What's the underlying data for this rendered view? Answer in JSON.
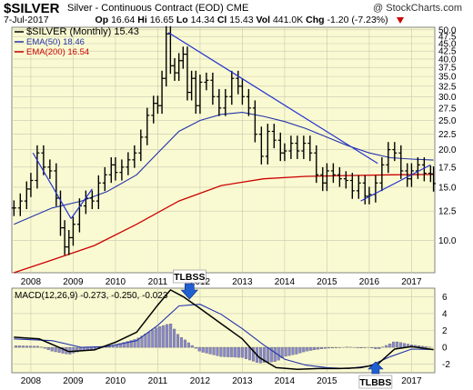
{
  "header": {
    "symbol": "$SILVER",
    "description": "Silver - Continuous Contract (EOD)",
    "exchange": "CME",
    "brand": "@ StockCharts.com",
    "date": "7-Jul-2017",
    "open_label": "Op",
    "open": "16.64",
    "high_label": "Hi",
    "high": "16.65",
    "low_label": "Lo",
    "low": "14.34",
    "close_label": "Cl",
    "close": "15.43",
    "vol_label": "Vol",
    "vol": "441.0K",
    "chg_label": "Chg",
    "chg": "-1.20 (-7.23%)"
  },
  "chart_data": [
    {
      "type": "line",
      "panel": "price",
      "yscale": "log",
      "ylim": [
        7.8,
        51
      ],
      "xlim": [
        2007.55,
        2017.55
      ],
      "yticks": [
        "50.0",
        "47.5",
        "45.0",
        "42.5",
        "40.0",
        "37.5",
        "35.0",
        "32.5",
        "30.0",
        "27.5",
        "25.0",
        "22.5",
        "20.0",
        "17.5",
        "15.0",
        "12.5",
        "10.0"
      ],
      "xticks": [
        "2008",
        "2009",
        "2010",
        "2011",
        "2012",
        "2013",
        "2014",
        "2015",
        "2016",
        "2017"
      ],
      "legend": [
        {
          "text": "$SILVER (Monthly) 15.43",
          "color": "#000000"
        },
        {
          "text": "EMA(50) 18.46",
          "color": "#2233aa"
        },
        {
          "text": "EMA(200) 16.54",
          "color": "#cc0000"
        }
      ],
      "colors": {
        "price": "#000000",
        "ema50": "#2233aa",
        "ema200": "#cc0000",
        "trendline": "#2233cc",
        "background": "#fafad2"
      },
      "series": [
        {
          "name": "$SILVER (Monthly) 15.43",
          "x": [
            2007.6,
            2007.75,
            2007.9,
            2008.0,
            2008.15,
            2008.3,
            2008.45,
            2008.6,
            2008.7,
            2008.8,
            2008.9,
            2009.0,
            2009.15,
            2009.3,
            2009.45,
            2009.6,
            2009.75,
            2009.9,
            2010.0,
            2010.15,
            2010.3,
            2010.45,
            2010.6,
            2010.75,
            2010.9,
            2011.0,
            2011.1,
            2011.2,
            2011.3,
            2011.4,
            2011.5,
            2011.6,
            2011.7,
            2011.8,
            2011.9,
            2012.0,
            2012.15,
            2012.3,
            2012.45,
            2012.6,
            2012.75,
            2012.9,
            2013.0,
            2013.15,
            2013.3,
            2013.45,
            2013.6,
            2013.75,
            2013.9,
            2014.0,
            2014.15,
            2014.3,
            2014.45,
            2014.6,
            2014.75,
            2014.9,
            2015.0,
            2015.15,
            2015.3,
            2015.45,
            2015.6,
            2015.75,
            2015.9,
            2016.0,
            2016.15,
            2016.3,
            2016.45,
            2016.6,
            2016.75,
            2016.9,
            2017.0,
            2017.15,
            2017.3,
            2017.45,
            2017.52
          ],
          "values": [
            12.8,
            13.5,
            14.8,
            15.8,
            19.5,
            17.5,
            17.0,
            13.8,
            11.0,
            9.5,
            10.2,
            11.3,
            13.0,
            13.8,
            13.5,
            15.5,
            16.5,
            17.8,
            16.8,
            17.5,
            18.5,
            19.5,
            22.0,
            26.0,
            28.5,
            28.0,
            34.5,
            48.5,
            38.0,
            36.0,
            39.5,
            41.5,
            31.0,
            34.5,
            28.0,
            33.5,
            34.0,
            30.0,
            27.5,
            30.0,
            34.5,
            32.5,
            30.0,
            27.5,
            22.5,
            19.0,
            23.0,
            21.5,
            19.5,
            19.8,
            21.0,
            19.8,
            21.0,
            19.5,
            16.5,
            15.5,
            17.0,
            16.5,
            16.0,
            15.8,
            14.6,
            15.5,
            14.0,
            14.2,
            15.5,
            17.8,
            20.0,
            19.5,
            17.0,
            16.0,
            17.0,
            17.8,
            16.7,
            16.6,
            15.43
          ]
        },
        {
          "name": "EMA(50) 18.46",
          "x": [
            2007.6,
            2008.5,
            2009.2,
            2009.8,
            2010.5,
            2011.0,
            2011.5,
            2012.0,
            2012.5,
            2013.0,
            2013.5,
            2014.0,
            2014.5,
            2015.0,
            2015.5,
            2016.0,
            2016.5,
            2017.0,
            2017.52
          ],
          "values": [
            11.3,
            12.8,
            13.5,
            14.5,
            16.5,
            19.5,
            23.0,
            25.0,
            26.2,
            26.6,
            25.8,
            24.8,
            23.5,
            22.0,
            20.6,
            19.5,
            18.8,
            18.6,
            18.46
          ]
        },
        {
          "name": "EMA(200) 16.54",
          "x": [
            2007.6,
            2008.5,
            2009.5,
            2010.5,
            2011.5,
            2012.5,
            2013.5,
            2014.5,
            2015.5,
            2016.5,
            2017.52
          ],
          "values": [
            7.8,
            8.6,
            9.6,
            11.3,
            13.5,
            15.2,
            16.0,
            16.3,
            16.4,
            16.5,
            16.54
          ]
        }
      ],
      "trendlines": [
        {
          "x": [
            2008.05,
            2008.95
          ],
          "values": [
            19.5,
            11.8
          ]
        },
        {
          "x": [
            2008.95,
            2009.45
          ],
          "values": [
            11.8,
            14.8
          ]
        },
        {
          "x": [
            2011.25,
            2016.2
          ],
          "values": [
            49.0,
            18.0
          ]
        },
        {
          "x": [
            2015.8,
            2017.45
          ],
          "values": [
            13.5,
            17.8
          ]
        }
      ]
    },
    {
      "type": "line",
      "panel": "macd",
      "title": "MACD(12,26,9) -0.273, -0.250, -0.023",
      "ylim": [
        -3,
        7
      ],
      "xlim": [
        2007.55,
        2017.55
      ],
      "yticks": [
        "6",
        "4",
        "2",
        "0",
        "-2"
      ],
      "xticks": [
        "2008",
        "2009",
        "2010",
        "2011",
        "2012",
        "2013",
        "2014",
        "2015",
        "2016",
        "2017"
      ],
      "colors": {
        "macd": "#000000",
        "signal": "#2233aa",
        "histogram": "#8888cc"
      },
      "series": [
        {
          "name": "MACD",
          "x": [
            2007.6,
            2008.2,
            2008.9,
            2009.5,
            2010.0,
            2010.5,
            2011.0,
            2011.3,
            2011.6,
            2012.0,
            2012.5,
            2013.0,
            2013.4,
            2013.8,
            2014.3,
            2014.8,
            2015.3,
            2015.8,
            2016.2,
            2016.6,
            2017.0,
            2017.52
          ],
          "values": [
            1.2,
            1.0,
            -0.5,
            -0.3,
            0.6,
            1.8,
            5.0,
            6.8,
            6.0,
            4.6,
            2.8,
            1.0,
            -1.2,
            -2.4,
            -2.6,
            -2.5,
            -2.5,
            -2.4,
            -2.0,
            -0.2,
            0.1,
            -0.273
          ]
        },
        {
          "name": "Signal",
          "x": [
            2007.6,
            2008.5,
            2009.2,
            2009.8,
            2010.5,
            2011.0,
            2011.5,
            2012.0,
            2012.5,
            2013.0,
            2013.5,
            2014.0,
            2014.5,
            2015.0,
            2015.5,
            2016.0,
            2016.5,
            2017.0,
            2017.52
          ],
          "values": [
            1.0,
            0.8,
            0.0,
            0.1,
            0.8,
            2.6,
            4.9,
            5.1,
            3.9,
            2.2,
            0.3,
            -1.4,
            -2.1,
            -2.4,
            -2.5,
            -2.2,
            -1.1,
            -0.2,
            -0.25
          ]
        }
      ],
      "annotations": [
        {
          "text": "TLBSS",
          "x": 2011.75,
          "arrow": "down"
        },
        {
          "text": "TLBBS",
          "x": 2016.15,
          "arrow": "up"
        }
      ]
    }
  ]
}
